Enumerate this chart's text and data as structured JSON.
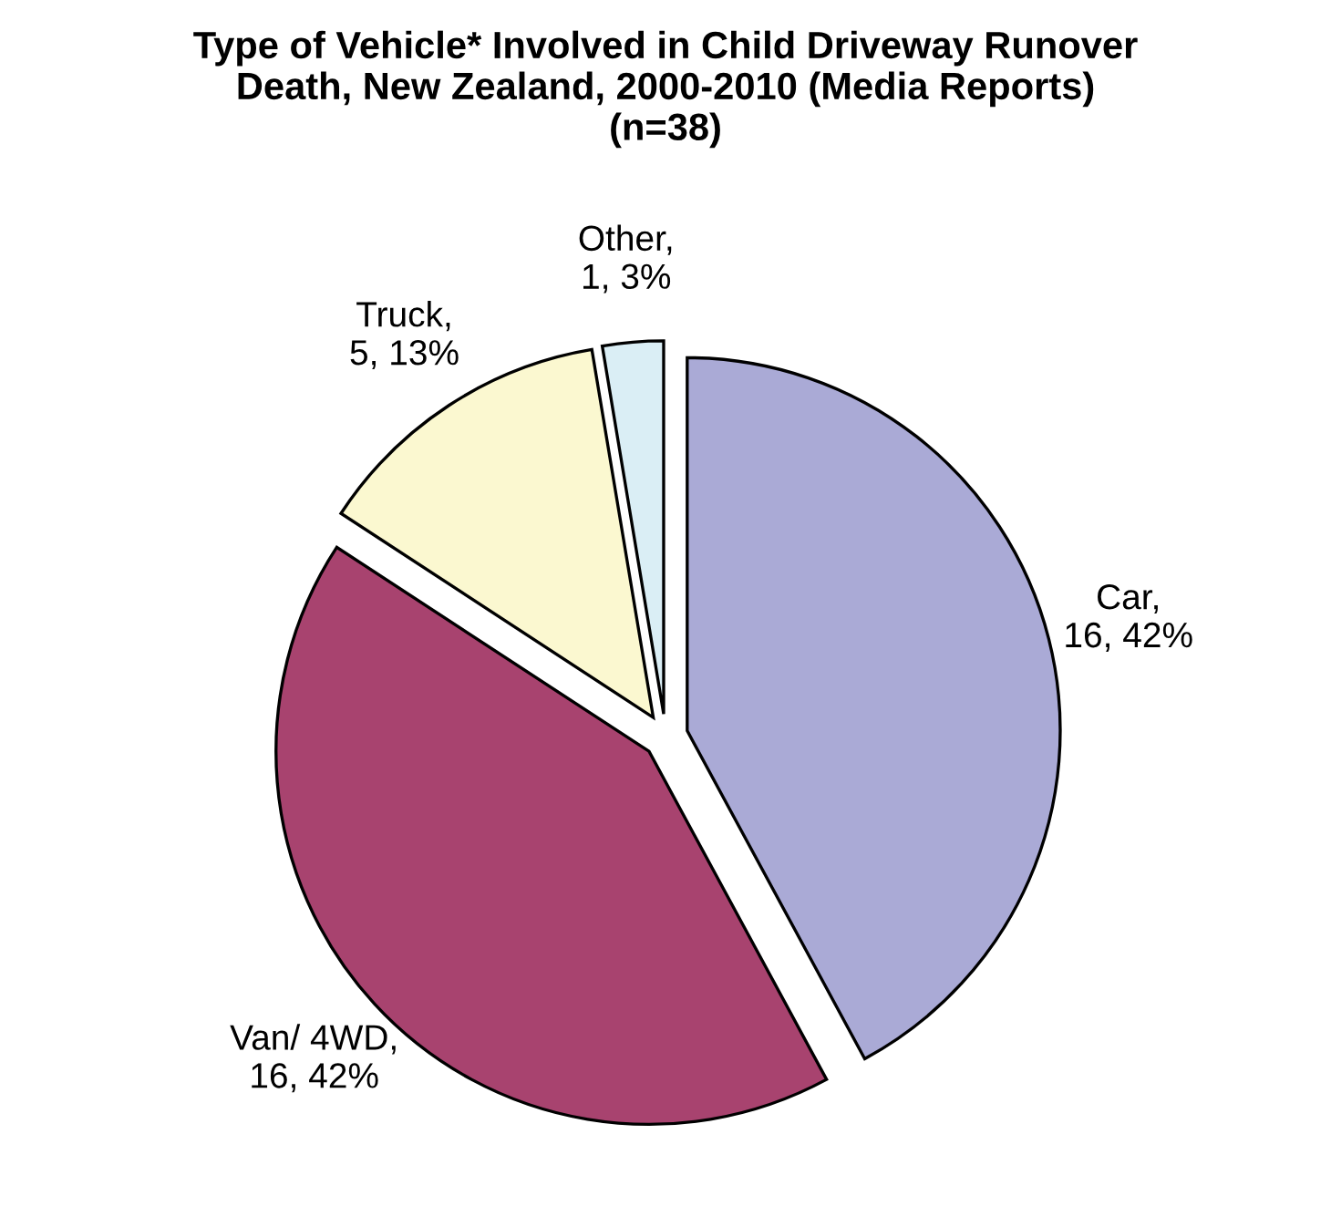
{
  "chart_data": {
    "type": "pie",
    "title": "Type of Vehicle* Involved in Child Driveway Runover\nDeath, New Zealand, 2000-2010 (Media Reports)\n(n=38)",
    "categories": [
      "Car",
      "Van/ 4WD",
      "Truck",
      "Other"
    ],
    "values": [
      16,
      16,
      5,
      1
    ],
    "value_labels": [
      ",\n16, 42%",
      ",\n16, 42%",
      ",\n5, 13%",
      ",\n1, 3%"
    ],
    "colors": [
      "#aaaad6",
      "#a8436f",
      "#fbf8d0",
      "#daeef5"
    ],
    "legend": false
  }
}
